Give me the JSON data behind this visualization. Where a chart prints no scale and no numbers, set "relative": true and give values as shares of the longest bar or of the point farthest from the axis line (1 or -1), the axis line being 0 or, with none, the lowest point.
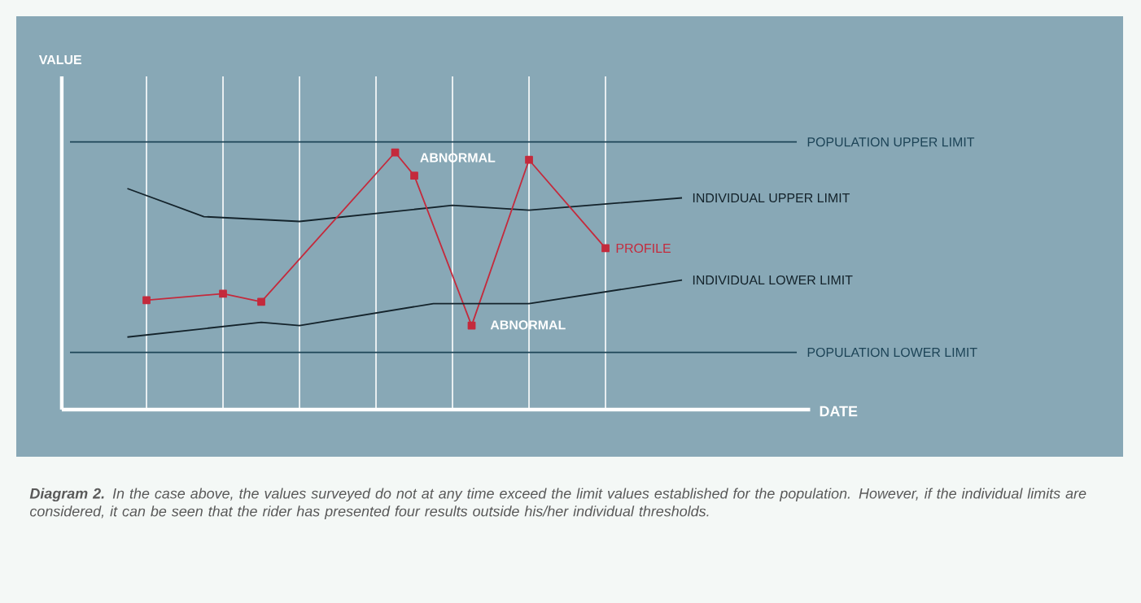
{
  "chart_data": {
    "type": "line",
    "relative": true,
    "xlabel": "DATE",
    "categories": [
      null,
      null,
      null,
      null,
      null,
      null,
      null,
      null,
      null,
      null,
      null,
      null,
      null,
      null,
      null,
      null,
      null,
      null,
      null,
      null,
      null,
      null,
      null,
      null,
      null,
      null,
      null,
      null,
      null,
      null,
      null,
      null,
      null,
      null,
      null,
      null,
      null,
      null,
      null
    ],
    "grid": "x",
    "series": [
      {
        "name": "POPULATION UPPER LIMIT",
        "color": "#1d4457",
        "values": [
          1,
          null,
          null,
          null,
          null,
          null,
          null,
          null,
          null,
          null,
          null,
          null,
          null,
          null,
          null,
          null,
          null,
          null,
          null,
          null,
          null,
          null,
          null,
          null,
          null,
          null,
          null,
          null,
          null,
          null,
          null,
          null,
          null,
          null,
          null,
          null,
          null,
          null,
          1
        ],
        "marker": "none"
      },
      {
        "name": "INDIVIDUAL UPPER LIMIT",
        "color": "#14232b",
        "values": [
          null,
          null,
          null,
          0.826,
          null,
          null,
          null,
          0.721,
          null,
          null,
          null,
          null,
          0.703,
          null,
          null,
          null,
          null,
          null,
          null,
          null,
          0.763,
          null,
          null,
          null,
          0.745,
          null,
          null,
          null,
          null,
          null,
          null,
          null,
          0.791,
          null,
          null,
          null,
          null,
          null,
          null
        ],
        "marker": "none"
      },
      {
        "name": "PROFILE",
        "color": "#c42a3c",
        "values": [
          null,
          null,
          null,
          null,
          0.409,
          null,
          null,
          null,
          0.433,
          null,
          0.403,
          null,
          null,
          null,
          null,
          null,
          null,
          0.961,
          0.874,
          null,
          null,
          0.314,
          null,
          null,
          0.933,
          null,
          null,
          null,
          0.603,
          null,
          null,
          null,
          null,
          null,
          null,
          null,
          null,
          null,
          null
        ],
        "marker": "square"
      },
      {
        "name": "INDIVIDUAL LOWER LIMIT",
        "color": "#14232b",
        "values": [
          null,
          null,
          null,
          0.271,
          null,
          null,
          null,
          null,
          null,
          null,
          0.326,
          null,
          0.314,
          null,
          null,
          null,
          null,
          null,
          null,
          0.396,
          null,
          null,
          null,
          null,
          0.396,
          null,
          null,
          null,
          null,
          null,
          null,
          null,
          0.484,
          null,
          null,
          null,
          null,
          null,
          null
        ],
        "marker": "none"
      },
      {
        "name": "POPULATION LOWER LIMIT",
        "color": "#1d4457",
        "values": [
          0.214,
          null,
          null,
          null,
          null,
          null,
          null,
          null,
          null,
          null,
          null,
          null,
          null,
          null,
          null,
          null,
          null,
          null,
          null,
          null,
          null,
          null,
          null,
          null,
          null,
          null,
          null,
          null,
          null,
          null,
          null,
          null,
          null,
          null,
          null,
          null,
          null,
          null,
          0.214
        ],
        "marker": "none"
      }
    ],
    "annotations": [
      "ABNORMAL",
      "ABNORMAL",
      "VALUE",
      "**Diagram 2.** In the case above, the values surveyed do not at any time exceed the limit values established for the population. However, if the individual limits are considered, it can be seen that the rider has presented four results outside his/her individual thresholds."
    ]
  }
}
